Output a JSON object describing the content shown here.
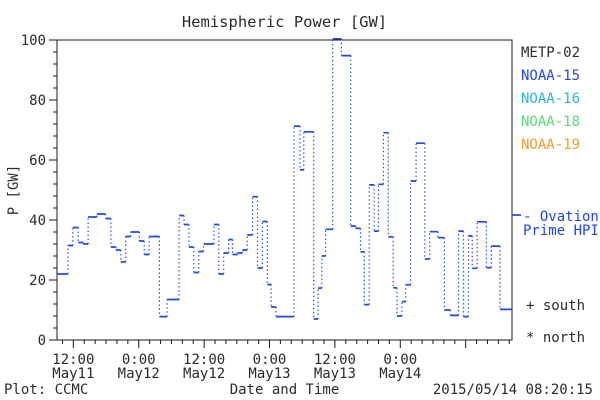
{
  "title": "Hemispheric Power [GW]",
  "colors": {
    "text": "#2b2b2b",
    "axis": "#1a1a1a",
    "line_blue": "#2248e6",
    "metp02": "#2b2b2b",
    "noaa15": "#2248e6",
    "noaa16": "#25b6dd",
    "noaa18": "#57de78",
    "noaa19": "#f59a28"
  },
  "legend": {
    "satellites": [
      {
        "label": "METP-02",
        "color": "#2b2b2b"
      },
      {
        "label": "NOAA-15",
        "color": "#2248e6"
      },
      {
        "label": "NOAA-16",
        "color": "#25b6dd"
      },
      {
        "label": "NOAA-18",
        "color": "#57de78"
      },
      {
        "label": "NOAA-19",
        "color": "#f59a28"
      }
    ],
    "ovation_line1": "- Ovation",
    "ovation_line2": "Prime HPI",
    "south_marker": "+ south",
    "north_marker": "* north"
  },
  "footer": {
    "left": "Plot: CCMC",
    "center": "Date and Time",
    "right": "2015/05/14 08:20:15"
  },
  "chart_data": {
    "type": "line",
    "mode": "step-post",
    "title": "Hemispheric Power [GW]",
    "xlabel": "Date and Time",
    "ylabel": "P [GW]",
    "ylim": [
      0,
      100
    ],
    "y_major_ticks": [
      0,
      20,
      40,
      60,
      80,
      100
    ],
    "y_minor_step": 4,
    "x_unit": "hours since 2015-05-11 00:00",
    "xlim": [
      9.0,
      92.5
    ],
    "x_major_ticks": [
      {
        "t": 12,
        "line1": "12:00",
        "line2": "May11"
      },
      {
        "t": 24,
        "line1": "0:00",
        "line2": "May12"
      },
      {
        "t": 36,
        "line1": "12:00",
        "line2": "May12"
      },
      {
        "t": 48,
        "line1": "0:00",
        "line2": "May13"
      },
      {
        "t": 60,
        "line1": "12:00",
        "line2": "May13"
      },
      {
        "t": 72,
        "line1": "0:00",
        "line2": "May14"
      },
      {
        "t": 84,
        "line1": "",
        "line2": ""
      }
    ],
    "x_minor_step": 2,
    "grid": false,
    "legend_position": "right-outside",
    "series": [
      {
        "name": "Ovation Prime HPI",
        "color": "#2248e6",
        "points": [
          [
            9.0,
            22
          ],
          [
            11.0,
            31.5
          ],
          [
            11.9,
            37.5
          ],
          [
            12.9,
            32.5
          ],
          [
            13.8,
            32
          ],
          [
            14.7,
            41
          ],
          [
            16.3,
            42
          ],
          [
            17.9,
            40.5
          ],
          [
            18.9,
            31
          ],
          [
            19.8,
            30
          ],
          [
            20.7,
            26
          ],
          [
            21.6,
            34.5
          ],
          [
            22.5,
            36
          ],
          [
            24.1,
            33
          ],
          [
            25.0,
            28.5
          ],
          [
            25.9,
            34.5
          ],
          [
            27.8,
            7.8
          ],
          [
            29.2,
            13.5
          ],
          [
            31.4,
            41.5
          ],
          [
            32.3,
            38.5
          ],
          [
            33.2,
            31
          ],
          [
            34.1,
            22.5
          ],
          [
            35.0,
            29.5
          ],
          [
            35.9,
            32
          ],
          [
            37.8,
            38.5
          ],
          [
            38.7,
            22
          ],
          [
            39.6,
            29
          ],
          [
            40.5,
            33.5
          ],
          [
            41.2,
            28.5
          ],
          [
            42.1,
            29
          ],
          [
            43.0,
            30
          ],
          [
            43.9,
            35
          ],
          [
            44.9,
            47.8
          ],
          [
            45.8,
            24
          ],
          [
            46.7,
            39.5
          ],
          [
            47.6,
            18.5
          ],
          [
            48.3,
            11
          ],
          [
            49.2,
            7.8
          ],
          [
            52.5,
            71.3
          ],
          [
            53.6,
            56.7
          ],
          [
            54.3,
            69.4
          ],
          [
            56.1,
            7
          ],
          [
            56.9,
            17.3
          ],
          [
            57.6,
            28
          ],
          [
            58.3,
            36.9
          ],
          [
            59.6,
            100.4
          ],
          [
            61.2,
            94.8
          ],
          [
            62.9,
            38
          ],
          [
            63.8,
            37.2
          ],
          [
            64.7,
            29.4
          ],
          [
            65.4,
            11.8
          ],
          [
            66.3,
            51.7
          ],
          [
            67.2,
            36.3
          ],
          [
            68.0,
            51.9
          ],
          [
            68.9,
            69.1
          ],
          [
            69.8,
            34.4
          ],
          [
            70.7,
            17.4
          ],
          [
            71.4,
            8
          ],
          [
            72.3,
            12.8
          ],
          [
            73.0,
            18.4
          ],
          [
            73.9,
            53
          ],
          [
            74.9,
            65.6
          ],
          [
            76.5,
            27
          ],
          [
            77.4,
            36.1
          ],
          [
            78.9,
            34.1
          ],
          [
            80.1,
            10
          ],
          [
            81.2,
            8.2
          ],
          [
            82.7,
            36.3
          ],
          [
            83.6,
            7.8
          ],
          [
            84.5,
            34.7
          ],
          [
            85.2,
            23.9
          ],
          [
            86.1,
            39.4
          ],
          [
            87.8,
            24.1
          ],
          [
            88.7,
            31.3
          ],
          [
            90.3,
            10.2
          ]
        ]
      }
    ]
  }
}
